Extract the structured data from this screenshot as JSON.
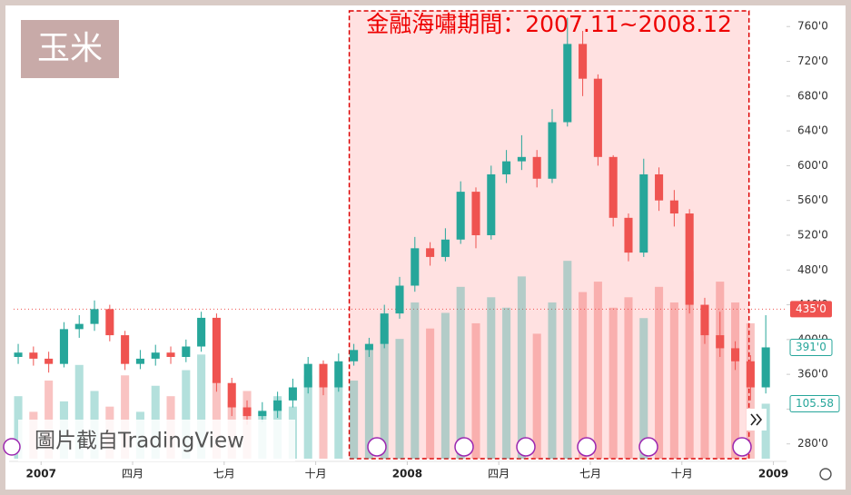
{
  "chart_data": {
    "type": "candlestick",
    "title": "玉米",
    "annotation": "金融海嘯期間：2007.11~2008.12",
    "watermark": "圖片截自TradingView",
    "x": [
      -0.75,
      -0.25,
      0.25,
      0.75,
      1.25,
      1.75,
      2.25,
      2.75,
      3.25,
      3.75,
      4.25,
      4.75,
      5.25,
      5.75,
      6.25,
      6.75,
      7.25,
      7.75,
      8.25,
      8.75,
      9.25,
      9.75,
      10.25,
      10.75,
      11.25,
      11.75,
      12.25,
      12.75,
      13.25,
      13.75,
      14.25,
      14.75,
      15.25,
      15.75,
      16.25,
      16.75,
      17.25,
      17.75,
      18.25,
      18.75,
      19.25,
      19.75,
      20.25,
      20.75,
      21.25,
      21.75,
      22.25,
      22.75,
      23.25,
      23.75
    ],
    "open": [
      380,
      385,
      378,
      372,
      412,
      418,
      435,
      405,
      372,
      378,
      385,
      380,
      392,
      425,
      350,
      322,
      312,
      318,
      330,
      345,
      372,
      345,
      375,
      388,
      395,
      430,
      462,
      505,
      495,
      515,
      570,
      520,
      590,
      605,
      610,
      585,
      650,
      740,
      700,
      610,
      540,
      500,
      590,
      560,
      545,
      440,
      405,
      390,
      375,
      345
    ],
    "high": [
      395,
      392,
      386,
      420,
      428,
      445,
      440,
      410,
      388,
      394,
      392,
      400,
      432,
      430,
      356,
      330,
      328,
      340,
      355,
      380,
      376,
      384,
      395,
      402,
      440,
      472,
      518,
      512,
      528,
      582,
      575,
      600,
      618,
      635,
      618,
      665,
      770,
      755,
      705,
      612,
      545,
      608,
      598,
      572,
      550,
      448,
      432,
      398,
      382,
      428
    ],
    "low": [
      372,
      370,
      362,
      368,
      402,
      410,
      398,
      365,
      366,
      370,
      372,
      374,
      386,
      340,
      312,
      302,
      305,
      310,
      322,
      338,
      336,
      340,
      370,
      380,
      390,
      424,
      455,
      485,
      490,
      510,
      505,
      515,
      580,
      595,
      575,
      580,
      645,
      680,
      600,
      530,
      490,
      495,
      548,
      530,
      430,
      395,
      380,
      365,
      330,
      338
    ],
    "close": [
      385,
      378,
      372,
      412,
      418,
      435,
      405,
      372,
      378,
      385,
      380,
      392,
      425,
      350,
      322,
      312,
      318,
      330,
      345,
      372,
      345,
      375,
      388,
      395,
      430,
      462,
      505,
      495,
      515,
      570,
      520,
      590,
      605,
      610,
      585,
      650,
      740,
      700,
      610,
      540,
      500,
      590,
      560,
      545,
      440,
      405,
      390,
      375,
      345,
      391
    ],
    "volume": [
      120,
      90,
      150,
      110,
      180,
      130,
      100,
      160,
      90,
      140,
      120,
      170,
      200,
      150,
      110,
      130,
      90,
      120,
      100,
      160,
      140,
      180,
      150,
      210,
      260,
      230,
      300,
      250,
      280,
      330,
      260,
      310,
      290,
      350,
      240,
      300,
      380,
      320,
      340,
      290,
      310,
      270,
      330,
      300,
      360,
      280,
      340,
      300,
      260,
      105.58
    ],
    "xlim": [
      -0.9,
      24.4
    ],
    "xticks": [
      {
        "value": 0,
        "label": "2007"
      },
      {
        "value": 3,
        "label": "四月"
      },
      {
        "value": 6,
        "label": "七月"
      },
      {
        "value": 9,
        "label": "十月"
      },
      {
        "value": 12,
        "label": "2008"
      },
      {
        "value": 15,
        "label": "四月"
      },
      {
        "value": 18,
        "label": "七月"
      },
      {
        "value": 21,
        "label": "十月"
      },
      {
        "value": 24,
        "label": "2009"
      }
    ],
    "ylim": [
      263,
      778
    ],
    "yticks": [
      {
        "value": 280,
        "label": "280'0"
      },
      {
        "value": 320,
        "label": "320'0"
      },
      {
        "value": 360,
        "label": "360'0"
      },
      {
        "value": 400,
        "label": "400'0"
      },
      {
        "value": 440,
        "label": "440'0"
      },
      {
        "value": 480,
        "label": "480'0"
      },
      {
        "value": 520,
        "label": "520'0"
      },
      {
        "value": 560,
        "label": "560'0"
      },
      {
        "value": 600,
        "label": "600'0"
      },
      {
        "value": 640,
        "label": "640'0"
      },
      {
        "value": 680,
        "label": "680'0"
      },
      {
        "value": 720,
        "label": "720'0"
      },
      {
        "value": 760,
        "label": "760'0"
      }
    ],
    "volume_ylim": [
      0,
      860
    ],
    "up_color": "#26a69a",
    "down_color": "#ef5350",
    "shade_range": [
      10.1,
      23.2
    ],
    "price_line": {
      "value": 435,
      "label": "435'0"
    },
    "last_price": {
      "value": 391,
      "label": "391'0"
    }
  }
}
